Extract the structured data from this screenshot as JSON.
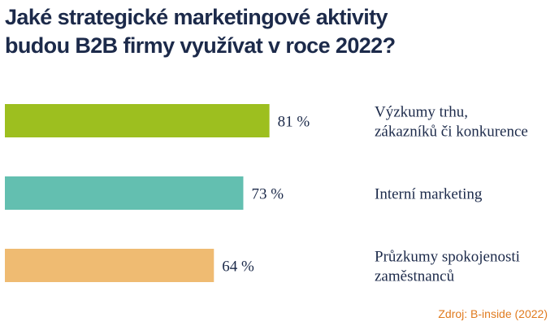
{
  "title_lines": [
    "Jaké strategické marketingové aktivity",
    "budou B2B firmy využívat v roce 2022?"
  ],
  "source": "Zdroj: B-inside (2022)",
  "chart_data": {
    "type": "bar",
    "orientation": "horizontal",
    "categories": [
      [
        "Výzkumy trhu,",
        "zákazníků či konkurence"
      ],
      [
        "Interní marketing"
      ],
      [
        "Průzkumy spokojenosti",
        "zaměstnanců"
      ]
    ],
    "values": [
      81,
      73,
      64
    ],
    "value_labels": [
      "81 %",
      "73 %",
      "64 %"
    ],
    "colors": [
      "#9dbf1f",
      "#63bfb0",
      "#efbb72"
    ],
    "unit": "%",
    "xlim": [
      0,
      100
    ],
    "grid": false,
    "legend": "none"
  }
}
